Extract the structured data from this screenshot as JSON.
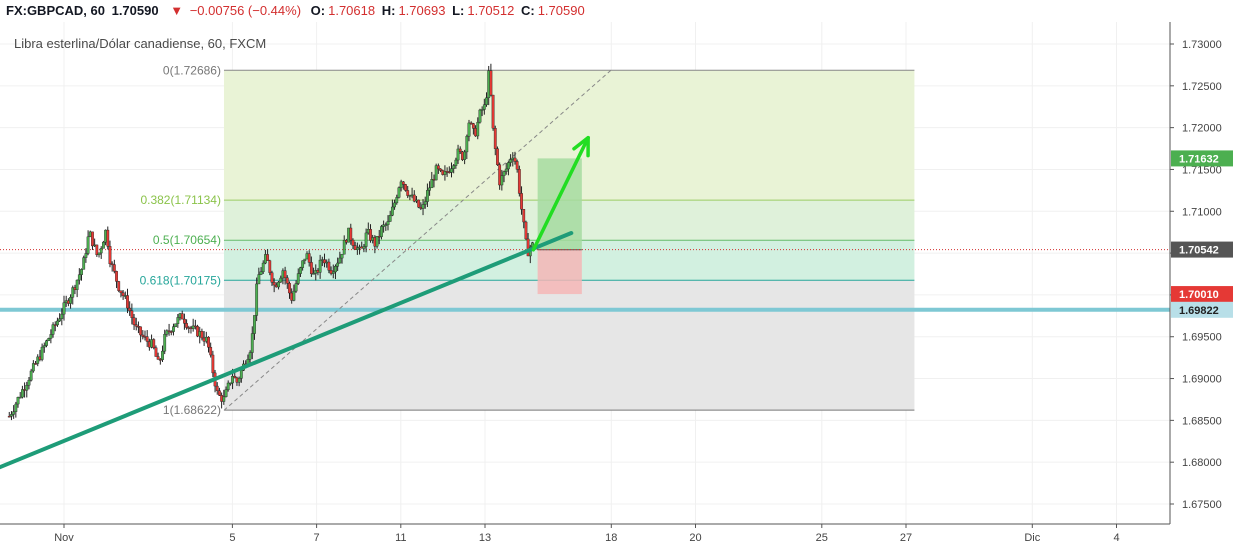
{
  "header": {
    "symbol": "FX:GBPCAD, 60",
    "last": "1.70590",
    "arrow": "▼",
    "change": "−0.00756 (−0.44%)",
    "o_label": "O:",
    "o_value": "1.70618",
    "h_label": "H:",
    "h_value": "1.70693",
    "l_label": "L:",
    "l_value": "1.70512",
    "c_label": "C:",
    "c_value": "1.70590",
    "subtitle": "Libra esterlina/Dólar canadiense, 60, FXCM"
  },
  "colors": {
    "up": "#26a69a",
    "down": "#ef5350",
    "candle_body_up": "#4caf50",
    "candle_body_down": "#e53935",
    "trendline": "#1e9c78",
    "support": "#7ec8d4",
    "arrow": "#22dd22",
    "fib_top_fill": "#e9f3d6",
    "fib_mid_fill": "#d2f0e0",
    "fib_bottom_fill": "#e6e6e6",
    "target_fill": "#a6dba0",
    "stop_fill": "#f4b6b6",
    "badge_green": "#4caf50",
    "badge_red": "#e53935",
    "badge_gray": "#555555",
    "badge_blue": "#b8dfe8"
  },
  "chart_data": {
    "type": "candlestick",
    "title": "Libra esterlina/Dólar canadiense, 60, FXCM",
    "ylim": [
      1.67,
      1.731
    ],
    "y_ticks": [
      "1.67500",
      "1.68000",
      "1.68500",
      "1.69000",
      "1.69500",
      "1.70000",
      "1.70500",
      "1.71000",
      "1.71500",
      "1.72000",
      "1.72500",
      "1.73000"
    ],
    "x_ticks": [
      {
        "label": "Nov",
        "x": 0
      },
      {
        "label": "5",
        "x": 4
      },
      {
        "label": "7",
        "x": 6
      },
      {
        "label": "11",
        "x": 8
      },
      {
        "label": "13",
        "x": 10
      },
      {
        "label": "18",
        "x": 13
      },
      {
        "label": "20",
        "x": 15
      },
      {
        "label": "25",
        "x": 18
      },
      {
        "label": "27",
        "x": 20
      },
      {
        "label": "Dic",
        "x": 23
      },
      {
        "label": "4",
        "x": 25
      }
    ],
    "price_path": [
      [
        0,
        1.6985
      ],
      [
        0.2,
        1.7005
      ],
      [
        0.45,
        1.7035
      ],
      [
        0.6,
        1.7075
      ],
      [
        0.8,
        1.7045
      ],
      [
        1.0,
        1.7078
      ],
      [
        1.1,
        1.704
      ],
      [
        1.3,
        1.701
      ],
      [
        1.5,
        1.699
      ],
      [
        1.7,
        1.696
      ],
      [
        1.9,
        1.6948
      ],
      [
        2.1,
        1.694
      ],
      [
        2.25,
        1.6915
      ],
      [
        2.4,
        1.695
      ],
      [
        2.6,
        1.6965
      ],
      [
        2.8,
        1.6975
      ],
      [
        3.0,
        1.696
      ],
      [
        3.2,
        1.6955
      ],
      [
        3.4,
        1.6945
      ],
      [
        3.55,
        1.6905
      ],
      [
        3.65,
        1.688
      ],
      [
        3.8,
        1.6875
      ],
      [
        3.9,
        1.689
      ],
      [
        4.0,
        1.6905
      ],
      [
        4.1,
        1.6895
      ],
      [
        4.3,
        1.692
      ],
      [
        4.45,
        1.694
      ],
      [
        4.6,
        1.702
      ],
      [
        4.8,
        1.7045
      ],
      [
        5.0,
        1.701
      ],
      [
        5.2,
        1.703
      ],
      [
        5.4,
        1.6995
      ],
      [
        5.55,
        1.702
      ],
      [
        5.75,
        1.705
      ],
      [
        5.95,
        1.702
      ],
      [
        6.15,
        1.7045
      ],
      [
        6.35,
        1.703
      ],
      [
        6.55,
        1.7045
      ],
      [
        6.75,
        1.7075
      ],
      [
        6.9,
        1.706
      ],
      [
        7.05,
        1.705
      ],
      [
        7.2,
        1.7075
      ],
      [
        7.4,
        1.706
      ],
      [
        7.55,
        1.708
      ],
      [
        7.7,
        1.7085
      ],
      [
        7.85,
        1.711
      ],
      [
        8.0,
        1.714
      ],
      [
        8.2,
        1.712
      ],
      [
        8.35,
        1.711
      ],
      [
        8.5,
        1.71
      ],
      [
        8.65,
        1.7125
      ],
      [
        8.85,
        1.715
      ],
      [
        9.0,
        1.714
      ],
      [
        9.2,
        1.7155
      ],
      [
        9.35,
        1.717
      ],
      [
        9.5,
        1.7165
      ],
      [
        9.6,
        1.721
      ],
      [
        9.75,
        1.719
      ],
      [
        9.9,
        1.722
      ],
      [
        10.0,
        1.7225
      ],
      [
        10.1,
        1.7268
      ],
      [
        10.2,
        1.719
      ],
      [
        10.35,
        1.7135
      ],
      [
        10.5,
        1.715
      ],
      [
        10.65,
        1.717
      ],
      [
        10.75,
        1.7155
      ],
      [
        10.85,
        1.711
      ],
      [
        10.95,
        1.707
      ],
      [
        11.0,
        1.705
      ],
      [
        11.1,
        1.706
      ],
      [
        11.15,
        1.7059
      ]
    ],
    "fibonacci": [
      {
        "label": "0(1.72686)",
        "value": 1.72686
      },
      {
        "label": "0.382(1.71134)",
        "value": 1.71134
      },
      {
        "label": "0.5(1.70654)",
        "value": 1.70654
      },
      {
        "label": "0.618(1.70175)",
        "value": 1.70175
      },
      {
        "label": "1(1.68622)",
        "value": 1.68622
      }
    ],
    "trendline": {
      "from": [
        -3.9,
        1.6745
      ],
      "to": [
        12.05,
        1.7074
      ]
    },
    "dashed_line": {
      "from": [
        3.8,
        1.6862
      ],
      "to": [
        13.0,
        1.7269
      ]
    },
    "support_level": 1.69822,
    "long_position": {
      "entry": 1.7054,
      "target": 1.71632,
      "stop": 1.7001,
      "x_start": 11.25,
      "x_end": 12.3
    },
    "arrow": {
      "from": [
        11.15,
        1.7054
      ],
      "to": [
        12.45,
        1.7188
      ]
    },
    "price_badges": [
      {
        "label": "1.71632",
        "value": 1.71632,
        "color": "green"
      },
      {
        "label": "1.70542",
        "value": 1.70542,
        "color": "gray"
      },
      {
        "label": "1.70010",
        "value": 1.7001,
        "color": "red"
      },
      {
        "label": "1.69822",
        "value": 1.69822,
        "color": "blue"
      }
    ]
  }
}
